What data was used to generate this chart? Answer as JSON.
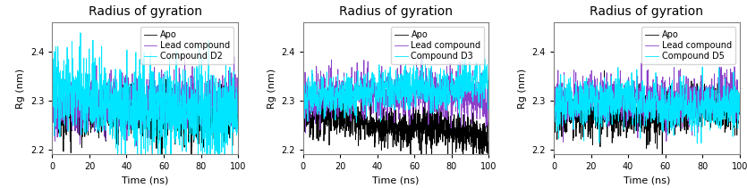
{
  "title": "Radius of gyration",
  "xlabel": "Time (ns)",
  "ylabel": "Rg (nm)",
  "xlim": [
    0,
    100
  ],
  "panels": [
    {
      "compound_label": "Compound D2",
      "legend_labels": [
        "Apo",
        "Lead compound",
        "Compound D2"
      ],
      "colors": [
        "#000000",
        "#8b3fc8",
        "#00e5ff"
      ],
      "ylim": [
        2.19,
        2.46
      ],
      "yticks": [
        2.2,
        2.3,
        2.4
      ],
      "apo_base": 2.275,
      "lead_base": 2.3,
      "comp_base": 2.32,
      "apo_std": 0.025,
      "lead_std": 0.028,
      "comp_std": 0.038
    },
    {
      "compound_label": "Compound D3",
      "legend_labels": [
        "Apo",
        "Lead compound",
        "Compound D3"
      ],
      "colors": [
        "#000000",
        "#8b3fc8",
        "#00e5ff"
      ],
      "ylim": [
        2.19,
        2.46
      ],
      "yticks": [
        2.2,
        2.3,
        2.4
      ],
      "apo_base": 2.265,
      "lead_base": 2.295,
      "comp_base": 2.3,
      "apo_std": 0.022,
      "lead_std": 0.025,
      "comp_std": 0.022
    },
    {
      "compound_label": "Compound D5",
      "legend_labels": [
        "Apo",
        "Lead compound",
        "Compound D5"
      ],
      "colors": [
        "#000000",
        "#8b3fc8",
        "#00e5ff"
      ],
      "ylim": [
        2.19,
        2.46
      ],
      "yticks": [
        2.2,
        2.3,
        2.4
      ],
      "apo_base": 2.27,
      "lead_base": 2.295,
      "comp_base": 2.285,
      "apo_std": 0.022,
      "lead_std": 0.025,
      "comp_std": 0.025
    }
  ],
  "n_points": 1001,
  "linewidth": 0.6,
  "title_fontsize": 10,
  "label_fontsize": 8,
  "tick_fontsize": 7,
  "legend_fontsize": 7
}
